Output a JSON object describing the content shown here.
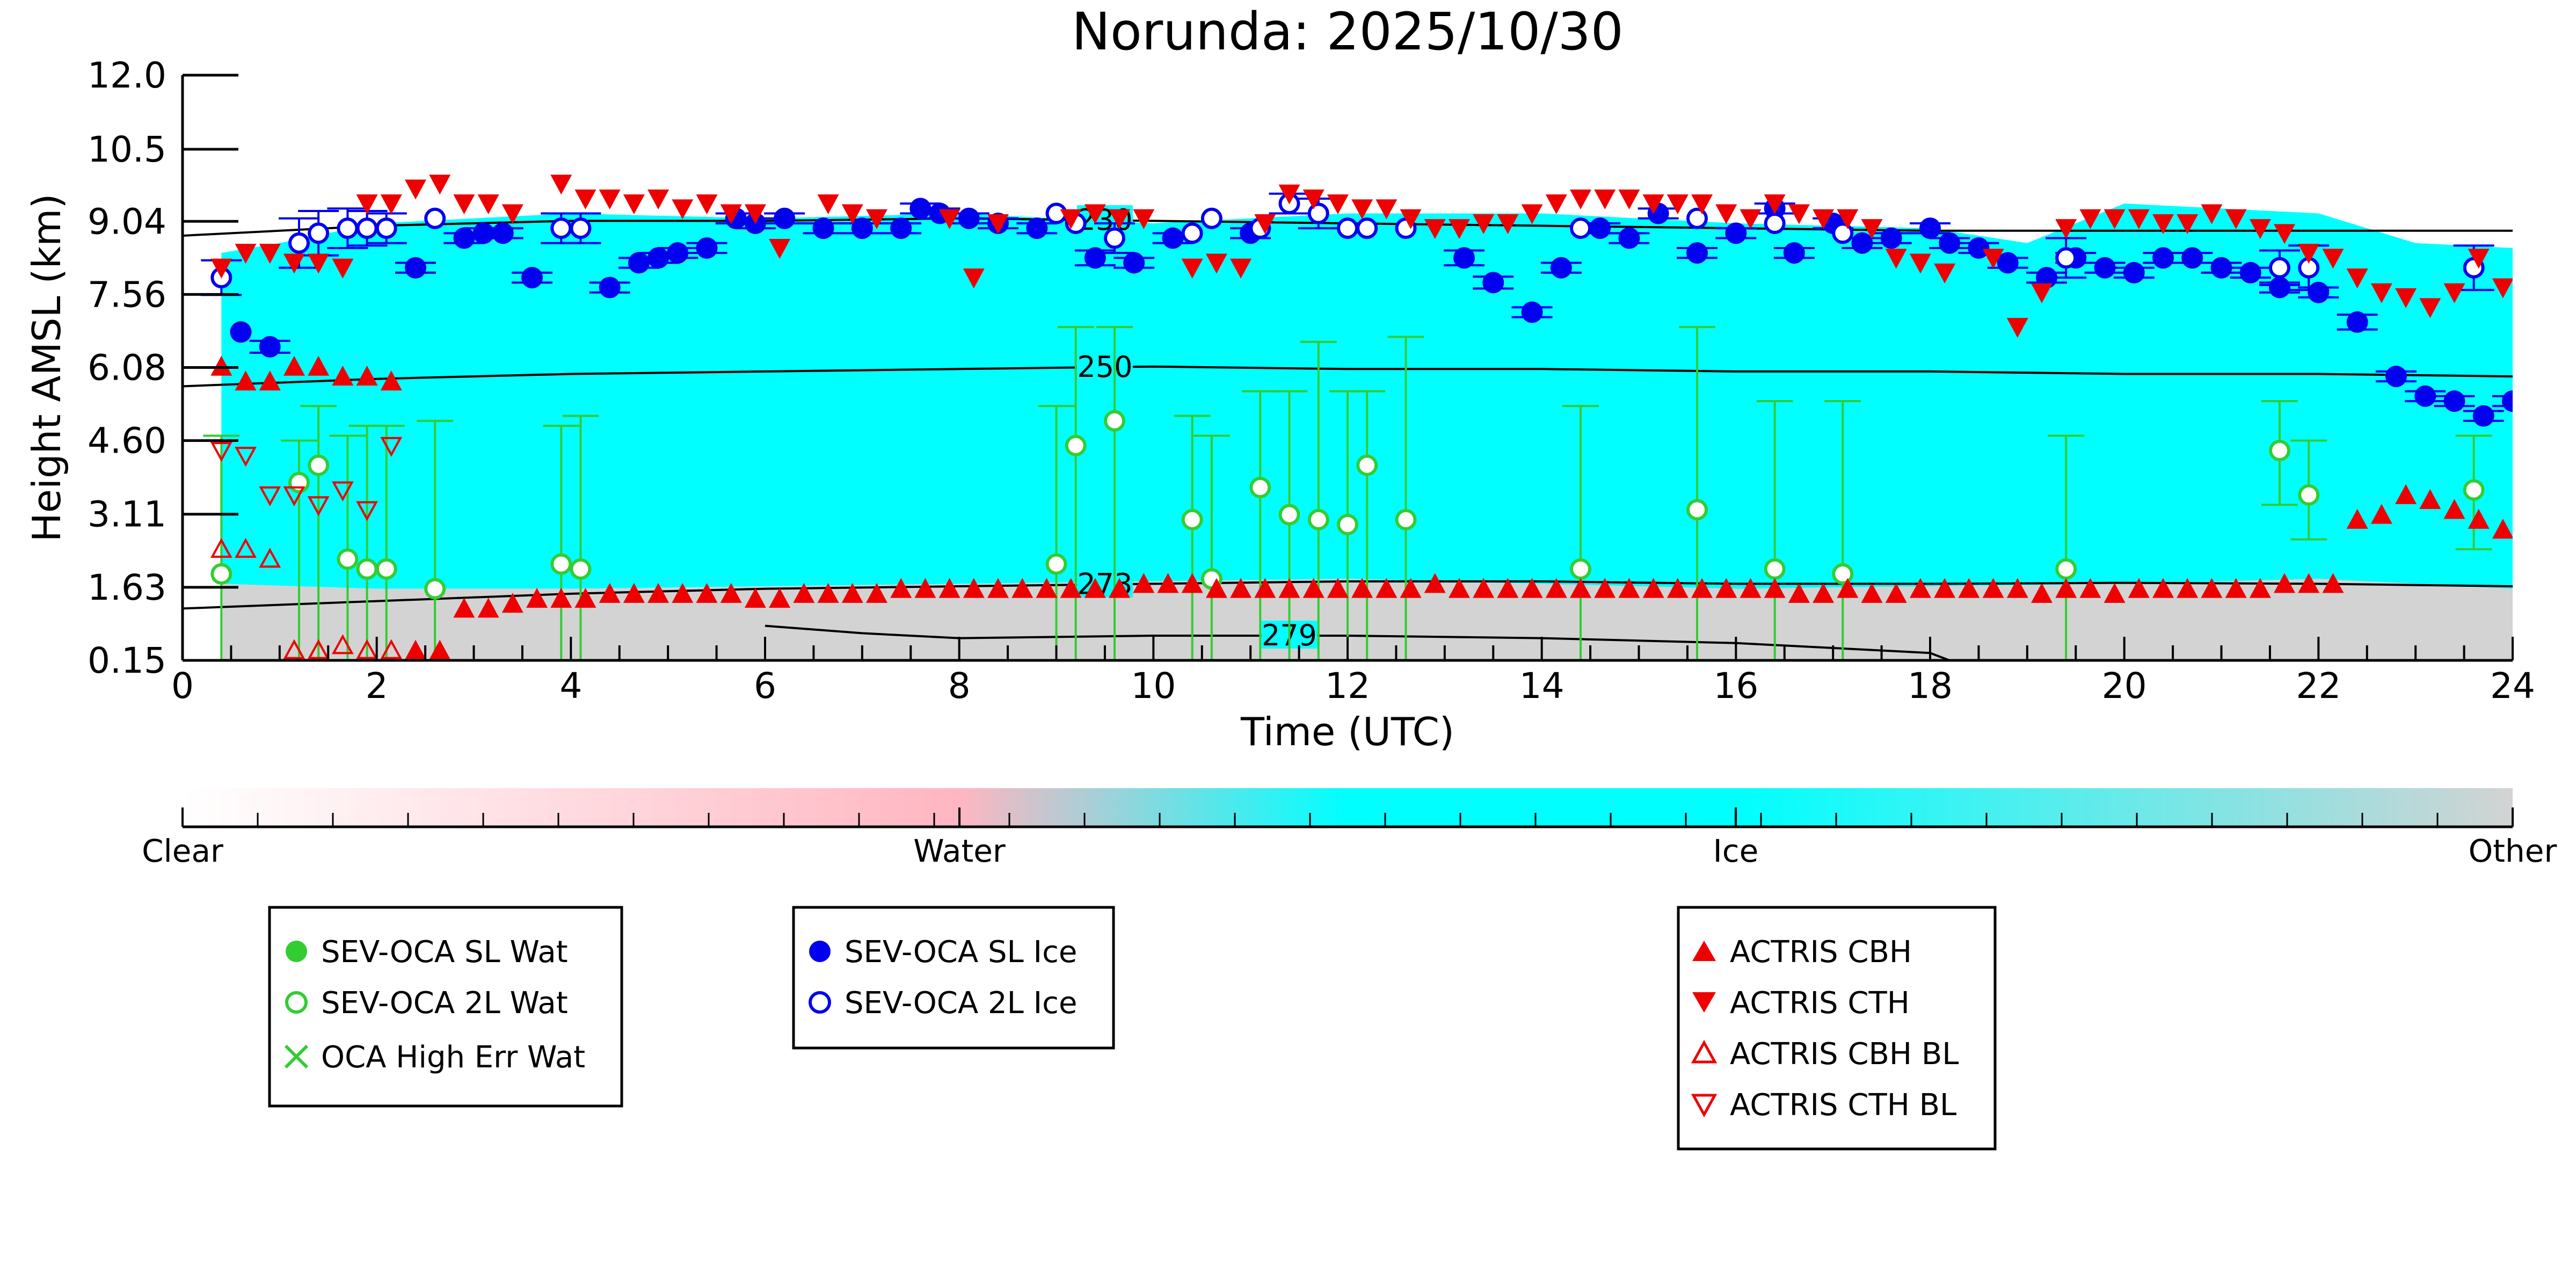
{
  "chart_data": {
    "type": "scatter",
    "title": "Norunda: 2025/10/30",
    "xlabel": "Time (UTC)",
    "ylabel": "Height AMSL (km)",
    "xlim": [
      0,
      24
    ],
    "ylim": [
      0.15,
      12.0
    ],
    "x_ticks": [
      0,
      2,
      4,
      6,
      8,
      10,
      12,
      14,
      16,
      18,
      20,
      22,
      24
    ],
    "y_ticks": [
      0.15,
      1.63,
      3.11,
      4.6,
      6.08,
      7.56,
      9.04,
      10.5,
      12.0
    ],
    "y_tick_labels": [
      "0.15",
      "1.63",
      "3.11",
      "4.60",
      "6.08",
      "7.56",
      "9.04",
      "10.5",
      "12.0"
    ],
    "background_classification": {
      "colorbar_labels": [
        "Clear",
        "Water",
        "Ice",
        "Other"
      ],
      "colors": {
        "clear": "#ffffff",
        "water": "#ffb6c1",
        "ice": "#00ffff",
        "other": "#d3d3d3"
      },
      "ice_layer_top": [
        [
          0.4,
          8.4
        ],
        [
          1,
          8.6
        ],
        [
          2,
          9.0
        ],
        [
          3,
          9.1
        ],
        [
          4,
          9.2
        ],
        [
          6,
          9.1
        ],
        [
          8,
          9.2
        ],
        [
          10,
          9.0
        ],
        [
          12,
          9.2
        ],
        [
          14,
          9.2
        ],
        [
          16,
          9.0
        ],
        [
          18,
          8.9
        ],
        [
          19,
          8.6
        ],
        [
          20,
          9.4
        ],
        [
          22,
          9.2
        ],
        [
          23,
          8.6
        ],
        [
          24,
          8.5
        ]
      ],
      "ice_layer_bottom": [
        [
          0.4,
          1.7
        ],
        [
          2,
          1.6
        ],
        [
          4,
          1.6
        ],
        [
          8,
          1.7
        ],
        [
          12,
          1.8
        ],
        [
          16,
          1.6
        ],
        [
          20,
          1.7
        ],
        [
          22,
          1.8
        ],
        [
          24,
          1.6
        ]
      ]
    },
    "contours": [
      {
        "label": "230",
        "points": [
          [
            0,
            8.75
          ],
          [
            2,
            8.95
          ],
          [
            4,
            9.05
          ],
          [
            6,
            9.05
          ],
          [
            8,
            9.1
          ],
          [
            10,
            9.05
          ],
          [
            12,
            9.0
          ],
          [
            14,
            8.95
          ],
          [
            16,
            8.9
          ],
          [
            18,
            8.85
          ],
          [
            20,
            8.85
          ],
          [
            22,
            8.85
          ],
          [
            24,
            8.85
          ]
        ],
        "label_at": 9.5
      },
      {
        "label": "250",
        "points": [
          [
            0,
            5.7
          ],
          [
            2,
            5.85
          ],
          [
            4,
            5.95
          ],
          [
            6,
            6.0
          ],
          [
            8,
            6.05
          ],
          [
            10,
            6.1
          ],
          [
            12,
            6.05
          ],
          [
            14,
            6.05
          ],
          [
            16,
            6.0
          ],
          [
            18,
            6.0
          ],
          [
            20,
            5.95
          ],
          [
            22,
            5.95
          ],
          [
            24,
            5.9
          ]
        ],
        "label_at": 9.5
      },
      {
        "label": "273",
        "points": [
          [
            0,
            1.2
          ],
          [
            2,
            1.35
          ],
          [
            4,
            1.5
          ],
          [
            6,
            1.6
          ],
          [
            8,
            1.65
          ],
          [
            10,
            1.7
          ],
          [
            12,
            1.75
          ],
          [
            14,
            1.75
          ],
          [
            16,
            1.7
          ],
          [
            18,
            1.7
          ],
          [
            20,
            1.72
          ],
          [
            22,
            1.7
          ],
          [
            24,
            1.65
          ]
        ],
        "label_at": 9.5
      },
      {
        "label": "279",
        "points": [
          [
            6.0,
            0.85
          ],
          [
            7,
            0.7
          ],
          [
            8,
            0.6
          ],
          [
            10,
            0.65
          ],
          [
            12,
            0.65
          ],
          [
            14,
            0.6
          ],
          [
            16,
            0.5
          ],
          [
            18,
            0.3
          ],
          [
            18.2,
            0.15
          ]
        ],
        "label_at": 11.4
      }
    ],
    "legend_groups": [
      [
        "SEV-OCA SL Wat",
        "SEV-OCA 2L Wat",
        "OCA High Err Wat"
      ],
      [
        "SEV-OCA SL Ice",
        "SEV-OCA 2L Ice"
      ],
      [
        "ACTRIS CBH",
        "ACTRIS CTH",
        "ACTRIS CBH BL",
        "ACTRIS CTH BL"
      ]
    ],
    "series": [
      {
        "name": "SEV-OCA SL Ice",
        "marker": "circle-filled",
        "color": "#0000ee",
        "x": [
          0.6,
          0.9,
          2.4,
          2.9,
          3.1,
          3.3,
          3.6,
          4.4,
          4.7,
          4.9,
          5.1,
          5.4,
          5.7,
          5.9,
          6.2,
          6.6,
          7.0,
          7.4,
          7.6,
          7.8,
          8.1,
          8.4,
          8.8,
          9.4,
          9.8,
          10.2,
          11.0,
          13.2,
          13.5,
          13.9,
          14.2,
          14.6,
          14.9,
          15.2,
          15.6,
          16.0,
          16.4,
          16.6,
          17.0,
          17.3,
          17.6,
          18.0,
          18.2,
          18.5,
          18.8,
          19.2,
          19.5,
          19.8,
          20.1,
          20.4,
          20.7,
          21.0,
          21.3,
          21.6,
          22.0,
          22.4,
          22.8,
          23.1,
          23.4,
          23.7,
          24.0
        ],
        "y": [
          6.8,
          6.5,
          8.1,
          8.7,
          8.8,
          8.8,
          7.9,
          7.7,
          8.2,
          8.3,
          8.4,
          8.5,
          9.1,
          9.0,
          9.1,
          8.9,
          8.9,
          8.9,
          9.3,
          9.2,
          9.1,
          9.0,
          8.9,
          8.3,
          8.2,
          8.7,
          8.8,
          8.3,
          7.8,
          7.2,
          8.1,
          8.9,
          8.7,
          9.2,
          8.4,
          8.8,
          9.3,
          8.4,
          9.0,
          8.6,
          8.7,
          8.9,
          8.6,
          8.5,
          8.2,
          7.9,
          8.3,
          8.1,
          8.0,
          8.3,
          8.3,
          8.1,
          8.0,
          7.7,
          7.6,
          7.0,
          5.9,
          5.5,
          5.4,
          5.1,
          5.4
        ],
        "error": [
          0,
          0.12,
          0.1,
          0.1,
          0.1,
          0.1,
          0.1,
          0.1,
          0.1,
          0.1,
          0.1,
          0.1,
          0.1,
          0.1,
          0.1,
          0.1,
          0.1,
          0.1,
          0.1,
          0.1,
          0.1,
          0.1,
          0.1,
          0.15,
          0.1,
          0.1,
          0.1,
          0.15,
          0.12,
          0.1,
          0.1,
          0.1,
          0.1,
          0.1,
          0.1,
          0.1,
          0.1,
          0.1,
          0.1,
          0.1,
          0.1,
          0.1,
          0.1,
          0.1,
          0.1,
          0.1,
          0.1,
          0.1,
          0.1,
          0.1,
          0.1,
          0.1,
          0.1,
          0.1,
          0.1,
          0.15,
          0.1,
          0.1,
          0.1,
          0.1,
          0.1
        ]
      },
      {
        "name": "SEV-OCA 2L Ice",
        "marker": "circle-open",
        "color": "#0000ee",
        "x": [
          0.4,
          1.2,
          1.4,
          1.7,
          1.9,
          2.1,
          2.6,
          3.9,
          4.1,
          9.0,
          9.2,
          9.6,
          10.4,
          10.6,
          11.1,
          11.4,
          11.7,
          12.0,
          12.2,
          12.6,
          14.4,
          15.6,
          16.4,
          17.1,
          19.4,
          21.6,
          21.9,
          23.6
        ],
        "y": [
          7.9,
          8.6,
          8.8,
          8.9,
          8.9,
          8.9,
          9.1,
          8.9,
          8.9,
          9.2,
          9.0,
          8.7,
          8.8,
          9.1,
          8.9,
          9.4,
          9.2,
          8.9,
          8.9,
          8.9,
          8.9,
          9.1,
          9.0,
          8.8,
          8.3,
          8.1,
          8.1,
          8.1
        ],
        "error": [
          0.35,
          0.5,
          0.45,
          0.4,
          0.35,
          0.3,
          0,
          0.3,
          0.3,
          0,
          0,
          0.3,
          0,
          0,
          0,
          0.2,
          0.3,
          0,
          0,
          0,
          0,
          0,
          0,
          0,
          0.4,
          0.35,
          0.45,
          0.45
        ]
      },
      {
        "name": "SEV-OCA 2L Wat",
        "marker": "circle-open",
        "color": "#33cc33",
        "x": [
          0.4,
          1.2,
          1.4,
          1.7,
          1.9,
          2.1,
          2.6,
          3.9,
          4.1,
          9.0,
          9.2,
          9.6,
          10.4,
          10.6,
          11.1,
          11.4,
          11.7,
          12.0,
          12.2,
          12.6,
          14.4,
          15.6,
          16.4,
          17.1,
          19.4,
          21.6,
          21.9,
          23.6
        ],
        "y": [
          1.9,
          3.75,
          4.1,
          2.2,
          2.0,
          2.0,
          1.6,
          2.1,
          2.0,
          2.1,
          4.5,
          5.0,
          3.0,
          1.8,
          3.65,
          3.1,
          3.0,
          2.9,
          4.1,
          3.0,
          2.0,
          3.2,
          2.0,
          1.9,
          2.0,
          4.4,
          3.5,
          3.6
        ],
        "err_low": [
          0.15,
          0.15,
          0.15,
          0.15,
          0.15,
          0.15,
          0.15,
          0.15,
          0.15,
          0.15,
          0.15,
          0.15,
          0.15,
          0.15,
          0.15,
          0.15,
          0.15,
          0.15,
          0.15,
          0.15,
          0.15,
          0.15,
          0.15,
          0.15,
          0.15,
          3.3,
          2.6,
          2.4
        ],
        "err_high": [
          4.7,
          4.6,
          5.3,
          4.7,
          4.9,
          4.9,
          5.0,
          4.9,
          5.1,
          5.3,
          6.9,
          6.9,
          5.1,
          4.7,
          5.6,
          5.6,
          6.6,
          5.6,
          5.6,
          6.7,
          5.3,
          6.9,
          5.4,
          5.4,
          4.7,
          5.4,
          4.6,
          4.7
        ]
      },
      {
        "name": "ACTRIS CBH",
        "marker": "triangle-up-filled",
        "color": "#ee0000",
        "x": [
          0.4,
          0.65,
          0.9,
          1.15,
          1.4,
          1.65,
          1.9,
          2.15,
          2.4,
          2.65,
          2.9,
          3.15,
          3.4,
          3.65,
          3.9,
          4.15,
          4.4,
          4.65,
          4.9,
          5.15,
          5.4,
          5.65,
          5.9,
          6.15,
          6.4,
          6.65,
          6.9,
          7.15,
          7.4,
          7.65,
          7.9,
          8.15,
          8.4,
          8.65,
          8.9,
          9.15,
          9.4,
          9.65,
          9.9,
          10.15,
          10.4,
          10.65,
          10.9,
          11.15,
          11.4,
          11.65,
          11.9,
          12.15,
          12.4,
          12.65,
          12.9,
          13.15,
          13.4,
          13.65,
          13.9,
          14.15,
          14.4,
          14.65,
          14.9,
          15.15,
          15.4,
          15.65,
          15.9,
          16.15,
          16.4,
          16.65,
          16.9,
          17.15,
          17.4,
          17.65,
          17.9,
          18.15,
          18.4,
          18.65,
          18.9,
          19.15,
          19.4,
          19.65,
          19.9,
          20.15,
          20.4,
          20.65,
          20.9,
          21.15,
          21.4,
          21.65,
          21.9,
          22.15,
          22.4,
          22.65,
          22.9,
          23.15,
          23.4,
          23.65,
          23.9
        ],
        "y": [
          6.1,
          5.8,
          5.8,
          6.1,
          6.1,
          5.9,
          5.9,
          5.8,
          0.35,
          0.35,
          1.2,
          1.2,
          1.3,
          1.4,
          1.4,
          1.4,
          1.5,
          1.5,
          1.5,
          1.5,
          1.5,
          1.5,
          1.4,
          1.4,
          1.5,
          1.5,
          1.5,
          1.5,
          1.6,
          1.6,
          1.6,
          1.6,
          1.6,
          1.6,
          1.6,
          1.6,
          1.6,
          1.6,
          1.7,
          1.7,
          1.7,
          1.6,
          1.6,
          1.6,
          1.6,
          1.6,
          1.6,
          1.6,
          1.6,
          1.6,
          1.7,
          1.6,
          1.6,
          1.6,
          1.6,
          1.6,
          1.6,
          1.6,
          1.6,
          1.6,
          1.6,
          1.6,
          1.6,
          1.6,
          1.6,
          1.5,
          1.5,
          1.6,
          1.5,
          1.5,
          1.6,
          1.6,
          1.6,
          1.6,
          1.6,
          1.5,
          1.6,
          1.6,
          1.5,
          1.6,
          1.6,
          1.6,
          1.6,
          1.6,
          1.6,
          1.7,
          1.7,
          1.7,
          3.0,
          3.1,
          3.5,
          3.4,
          3.2,
          3.0,
          2.8
        ]
      },
      {
        "name": "ACTRIS CTH",
        "marker": "triangle-down-filled",
        "color": "#ee0000",
        "x": [
          0.4,
          0.65,
          0.9,
          1.15,
          1.4,
          1.65,
          1.9,
          2.15,
          2.4,
          2.65,
          2.9,
          3.15,
          3.4,
          3.9,
          4.15,
          4.4,
          4.65,
          4.9,
          5.15,
          5.4,
          5.65,
          5.9,
          6.15,
          6.65,
          6.9,
          7.15,
          7.9,
          8.15,
          8.4,
          9.15,
          9.4,
          9.65,
          9.9,
          10.4,
          10.65,
          10.9,
          11.15,
          11.4,
          11.65,
          11.9,
          12.15,
          12.4,
          12.65,
          12.9,
          13.15,
          13.4,
          13.65,
          13.9,
          14.15,
          14.4,
          14.65,
          14.9,
          15.15,
          15.4,
          15.65,
          15.9,
          16.15,
          16.4,
          16.65,
          16.9,
          17.15,
          17.4,
          17.65,
          17.9,
          18.15,
          18.65,
          18.9,
          19.15,
          19.4,
          19.65,
          19.9,
          20.15,
          20.4,
          20.65,
          20.9,
          21.15,
          21.4,
          21.65,
          21.9,
          22.15,
          22.4,
          22.65,
          22.9,
          23.15,
          23.4,
          23.65,
          23.9
        ],
        "y": [
          8.1,
          8.4,
          8.4,
          8.2,
          8.2,
          8.1,
          9.4,
          9.4,
          9.7,
          9.8,
          9.4,
          9.4,
          9.2,
          9.8,
          9.5,
          9.5,
          9.4,
          9.5,
          9.3,
          9.4,
          9.2,
          9.2,
          8.5,
          9.4,
          9.2,
          9.1,
          9.1,
          7.9,
          9.0,
          9.1,
          9.2,
          9.1,
          9.1,
          8.1,
          8.2,
          8.1,
          9.0,
          9.6,
          9.5,
          9.4,
          9.3,
          9.3,
          9.1,
          8.9,
          8.9,
          9.0,
          9.0,
          9.2,
          9.4,
          9.5,
          9.5,
          9.5,
          9.4,
          9.4,
          9.4,
          9.2,
          9.1,
          9.4,
          9.2,
          9.1,
          9.1,
          8.9,
          8.3,
          8.2,
          8.0,
          8.3,
          6.9,
          7.6,
          8.9,
          9.1,
          9.1,
          9.1,
          9.0,
          9.0,
          9.2,
          9.1,
          8.9,
          8.8,
          8.4,
          8.3,
          7.9,
          7.6,
          7.5,
          7.3,
          7.6,
          8.3,
          7.7
        ]
      },
      {
        "name": "ACTRIS CBH BL",
        "marker": "triangle-up-open",
        "color": "#ee0000",
        "x": [
          0.4,
          0.65,
          0.9,
          1.15,
          1.4,
          1.65,
          1.9,
          2.15
        ],
        "y": [
          2.4,
          2.4,
          2.2,
          0.35,
          0.35,
          0.45,
          0.35,
          0.35
        ]
      },
      {
        "name": "ACTRIS CTH BL",
        "marker": "triangle-down-open",
        "color": "#ee0000",
        "x": [
          0.4,
          0.65,
          0.9,
          1.15,
          1.4,
          1.65,
          1.9,
          2.15
        ],
        "y": [
          4.4,
          4.3,
          3.5,
          3.5,
          3.3,
          3.6,
          3.2,
          4.5
        ]
      }
    ]
  }
}
